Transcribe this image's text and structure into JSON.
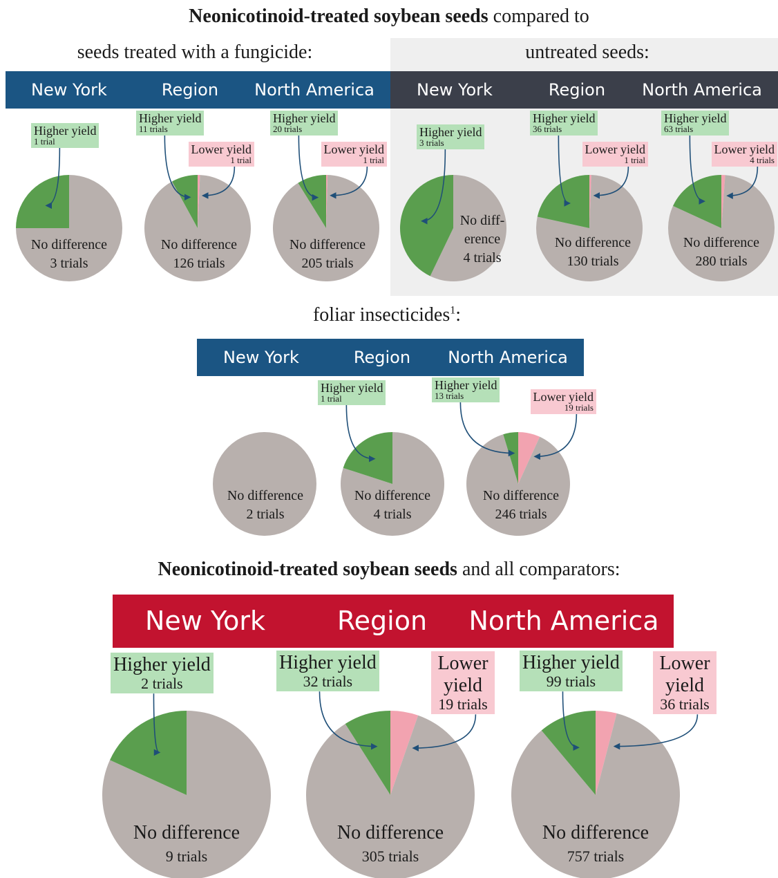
{
  "title": {
    "bold": "Neonicotinoid-treated soybean seeds",
    "rest": "compared to"
  },
  "groups": [
    {
      "label": "seeds treated with a fungicide:"
    },
    {
      "label": "untreated seeds:"
    }
  ],
  "foliar": {
    "text": "foliar insecticides",
    "footnote": "1",
    "end": ":"
  },
  "summary_title": {
    "bold": "Neonicotinoid-treated soybean seeds",
    "rest": "and all comparators:"
  },
  "chart_data": [
    {
      "type": "pie",
      "title": "New York",
      "categories": [
        "No difference",
        "Higher yield"
      ],
      "values": [
        3,
        1
      ],
      "value_labels": [
        "3 trials",
        "1 trial"
      ],
      "colors": [
        "#b8b0ad",
        "#5a9e4e"
      ]
    },
    {
      "type": "pie",
      "title": "Region",
      "categories": [
        "Lower yield",
        "No difference",
        "Higher yield"
      ],
      "values": [
        1,
        126,
        11
      ],
      "value_labels": [
        "1 trial",
        "126 trials",
        "11 trials"
      ],
      "colors": [
        "#f2a3b0",
        "#b8b0ad",
        "#5a9e4e"
      ]
    },
    {
      "type": "pie",
      "title": "North America",
      "categories": [
        "Lower yield",
        "No difference",
        "Higher yield"
      ],
      "values": [
        1,
        205,
        20
      ],
      "value_labels": [
        "1 trial",
        "205 trials",
        "20 trials"
      ],
      "colors": [
        "#f2a3b0",
        "#b8b0ad",
        "#5a9e4e"
      ]
    },
    {
      "type": "pie",
      "title": "New York",
      "categories": [
        "No diff-erence",
        "Higher yield"
      ],
      "values": [
        4,
        3
      ],
      "value_labels": [
        "4 trials",
        "3 trials"
      ],
      "colors": [
        "#b8b0ad",
        "#5a9e4e"
      ]
    },
    {
      "type": "pie",
      "title": "Region",
      "categories": [
        "Lower yield",
        "No difference",
        "Higher yield"
      ],
      "values": [
        1,
        130,
        36
      ],
      "value_labels": [
        "1 trial",
        "130 trials",
        "36 trials"
      ],
      "colors": [
        "#f2a3b0",
        "#b8b0ad",
        "#5a9e4e"
      ]
    },
    {
      "type": "pie",
      "title": "North America",
      "categories": [
        "Lower yield",
        "No difference",
        "Higher yield"
      ],
      "values": [
        4,
        280,
        63
      ],
      "value_labels": [
        "4 trials",
        "280 trials",
        "63 trials"
      ],
      "colors": [
        "#f2a3b0",
        "#b8b0ad",
        "#5a9e4e"
      ]
    },
    {
      "type": "pie",
      "title": "New York",
      "categories": [
        "No difference"
      ],
      "values": [
        2
      ],
      "value_labels": [
        "2 trials"
      ],
      "colors": [
        "#b8b0ad"
      ]
    },
    {
      "type": "pie",
      "title": "Region",
      "categories": [
        "No difference",
        "Higher yield"
      ],
      "values": [
        4,
        1
      ],
      "value_labels": [
        "4 trials",
        "1 trial"
      ],
      "colors": [
        "#b8b0ad",
        "#5a9e4e"
      ]
    },
    {
      "type": "pie",
      "title": "North America",
      "categories": [
        "Lower yield",
        "No difference",
        "Higher yield"
      ],
      "values": [
        19,
        246,
        13
      ],
      "value_labels": [
        "19 trials",
        "246 trials",
        "13 trials"
      ],
      "colors": [
        "#f2a3b0",
        "#b8b0ad",
        "#5a9e4e"
      ]
    },
    {
      "type": "pie",
      "title": "New York",
      "categories": [
        "No difference",
        "Higher yield"
      ],
      "values": [
        9,
        2
      ],
      "value_labels": [
        "9 trials",
        "2 trials"
      ],
      "colors": [
        "#b8b0ad",
        "#5a9e4e"
      ]
    },
    {
      "type": "pie",
      "title": "Region",
      "categories": [
        "Lower yield",
        "No difference",
        "Higher yield"
      ],
      "values": [
        19,
        305,
        32
      ],
      "value_labels": [
        "19 trials",
        "305 trials",
        "32 trials"
      ],
      "colors": [
        "#f2a3b0",
        "#b8b0ad",
        "#5a9e4e"
      ]
    },
    {
      "type": "pie",
      "title": "North America",
      "categories": [
        "Lower yield",
        "No difference",
        "Higher yield"
      ],
      "values": [
        36,
        757,
        99
      ],
      "value_labels": [
        "36 trials",
        "757 trials",
        "99 trials"
      ],
      "colors": [
        "#f2a3b0",
        "#b8b0ad",
        "#5a9e4e"
      ]
    }
  ]
}
